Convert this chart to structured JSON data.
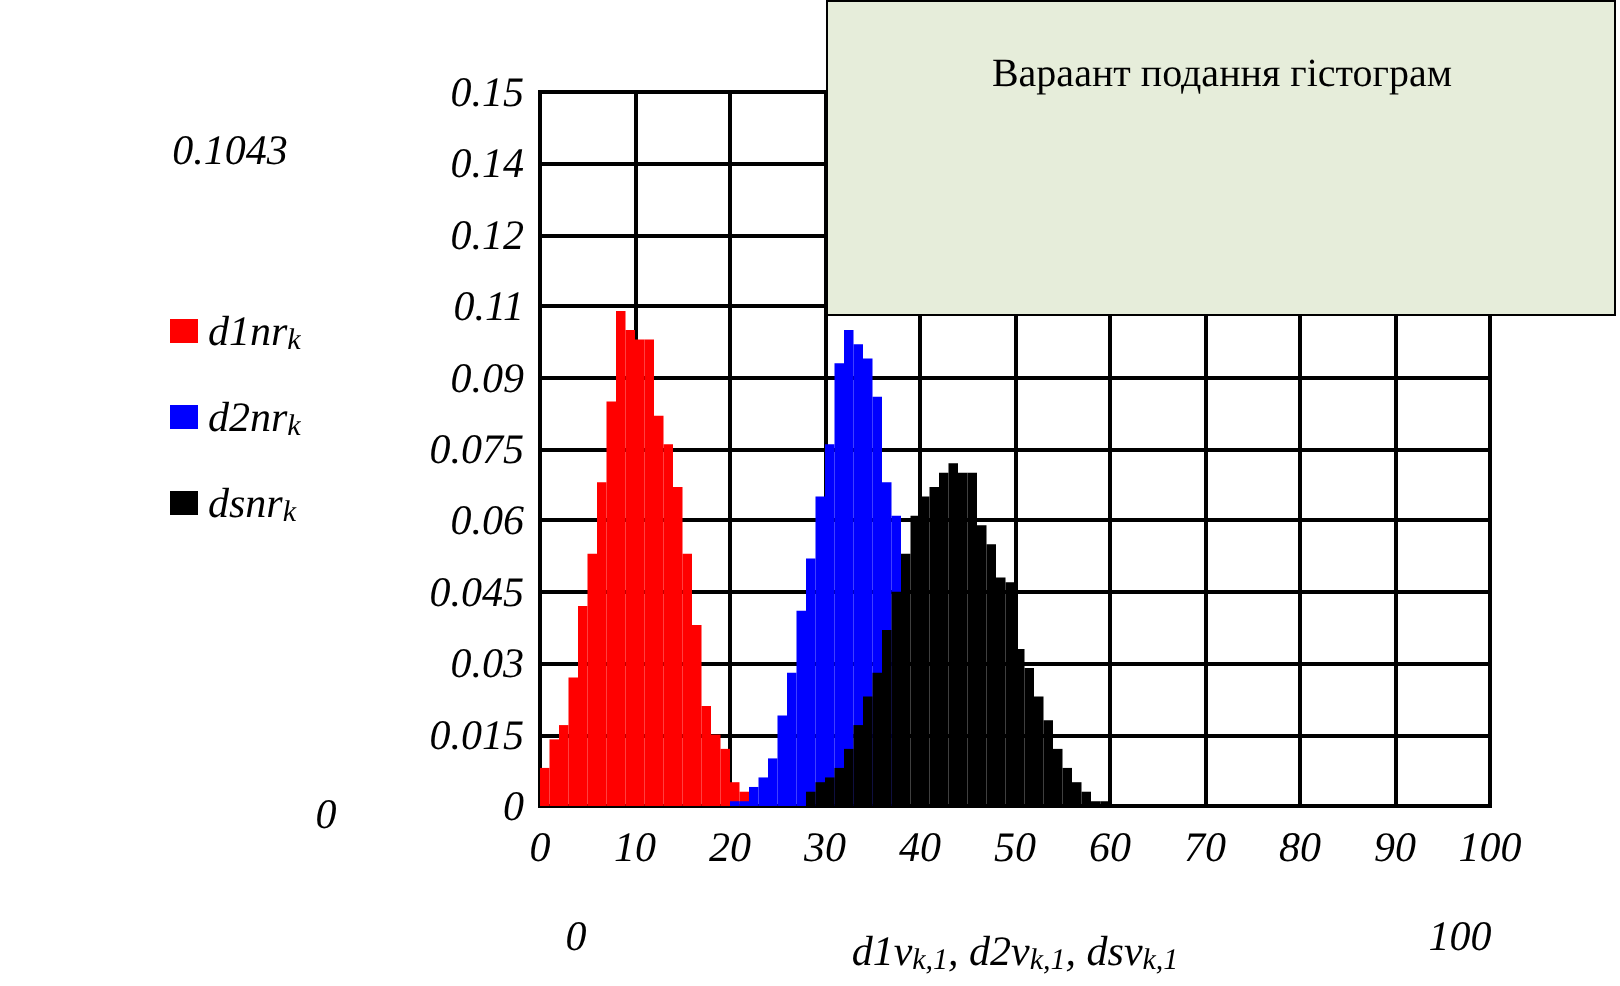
{
  "chart_data": {
    "type": "histogram",
    "xlabel": "d1v$_{k,1}$, d2v$_{k,1}$, dsv$_{k,1}$",
    "xlim": [
      0,
      100
    ],
    "xticks": [
      0,
      10,
      20,
      30,
      40,
      50,
      60,
      70,
      80,
      90,
      100
    ],
    "ylim": [
      0,
      0.15
    ],
    "yticks": [
      0,
      0.015,
      0.03,
      0.045,
      0.06,
      0.075,
      0.09,
      {
        "value": 0.105,
        "label": "0.11"
      },
      0.12,
      {
        "value": 0.135,
        "label": "0.14"
      },
      0.15
    ],
    "grid": true,
    "legend": "left",
    "annotations": [
      "Вараант подання гістограм",
      "0.1043",
      "0",
      "0",
      "100"
    ],
    "bins": [
      0,
      1,
      2,
      3,
      4,
      5,
      6,
      7,
      8,
      9,
      10,
      11,
      12,
      13,
      14,
      15,
      16,
      17,
      18,
      19,
      20,
      21,
      22,
      23,
      24,
      25,
      26,
      27,
      28,
      29,
      30,
      31,
      32,
      33,
      34,
      35,
      36,
      37,
      38,
      39,
      40,
      41,
      42,
      43,
      44,
      45,
      46,
      47,
      48,
      49,
      50,
      51,
      52,
      53,
      54,
      55,
      56,
      57,
      58,
      59,
      60
    ],
    "series": [
      {
        "name": "d1nr$_{k}$",
        "color": "#ff0000",
        "values": [
          0.008,
          0.014,
          0.017,
          0.027,
          0.042,
          0.053,
          0.068,
          0.085,
          0.104,
          0.1,
          0.098,
          0.098,
          0.082,
          0.076,
          0.067,
          0.053,
          0.038,
          0.021,
          0.015,
          0.012,
          0.005,
          0.003,
          null,
          null,
          null,
          null,
          null,
          null,
          null,
          null,
          null,
          null,
          null,
          null,
          null,
          null,
          null,
          null,
          null,
          null,
          null,
          null,
          null,
          null,
          null,
          null,
          null,
          null,
          null,
          null,
          null,
          null,
          null,
          null,
          null,
          null,
          null,
          null,
          null,
          null
        ]
      },
      {
        "name": "d2nr$_{k}$",
        "color": "#0000ff",
        "values": [
          null,
          null,
          null,
          null,
          null,
          null,
          null,
          null,
          null,
          null,
          null,
          null,
          null,
          null,
          null,
          null,
          null,
          null,
          null,
          null,
          0.001,
          0.001,
          0.004,
          0.006,
          0.01,
          0.019,
          0.028,
          0.041,
          0.052,
          0.065,
          0.076,
          0.093,
          0.1,
          0.097,
          0.094,
          0.086,
          0.068,
          0.061,
          null,
          null,
          null,
          null,
          null,
          null,
          null,
          null,
          null,
          null,
          null,
          null,
          null,
          null,
          null,
          null,
          null,
          null,
          null,
          null,
          null,
          null
        ]
      },
      {
        "name": "dsnr$_{k}$",
        "color": "#000000",
        "values": [
          null,
          null,
          null,
          null,
          null,
          null,
          null,
          null,
          null,
          null,
          null,
          null,
          null,
          null,
          null,
          null,
          null,
          null,
          null,
          null,
          null,
          null,
          null,
          null,
          null,
          null,
          null,
          null,
          0.003,
          0.005,
          0.006,
          0.008,
          0.012,
          0.017,
          0.023,
          0.028,
          0.037,
          0.045,
          0.053,
          0.061,
          0.065,
          0.067,
          0.07,
          0.072,
          0.07,
          0.07,
          0.059,
          0.055,
          0.048,
          0.047,
          0.033,
          0.029,
          0.023,
          0.018,
          0.012,
          0.008,
          0.005,
          0.003,
          0.001,
          0.001
        ]
      }
    ]
  }
}
